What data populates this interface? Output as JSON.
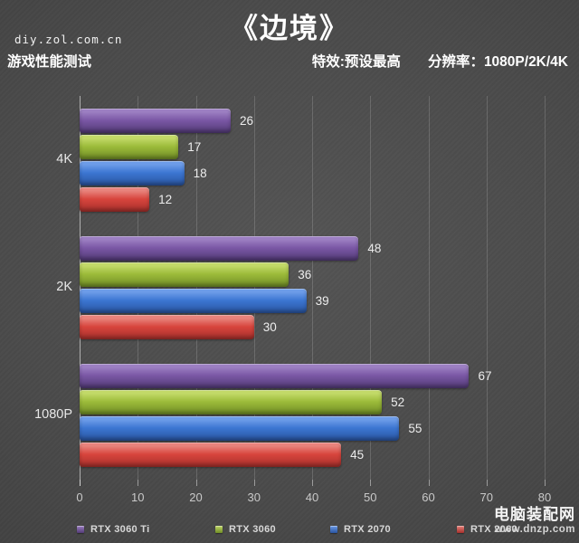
{
  "header": {
    "title": "《边境》",
    "site": "diy.zol.com.cn",
    "subtitle_left": "游戏性能测试",
    "effects": "特效:预设最高",
    "resolution": "分辨率：1080P/2K/4K"
  },
  "watermark": {
    "name": "电脑装配网",
    "url": "www.dnzp.com"
  },
  "chart_data": {
    "type": "bar",
    "orientation": "horizontal",
    "title": "《边境》",
    "xlabel": "",
    "ylabel": "",
    "categories": [
      "4K",
      "2K",
      "1080P"
    ],
    "series": [
      {
        "name": "RTX 3060 Ti",
        "values": [
          26,
          48,
          67
        ],
        "color": "#7a57a5",
        "color_light": "#9c7fc2",
        "color_dark": "#523a76"
      },
      {
        "name": "RTX 3060",
        "values": [
          17,
          36,
          52
        ],
        "color": "#9cbb3a",
        "color_light": "#c2d968",
        "color_dark": "#6f8c25"
      },
      {
        "name": "RTX 2070",
        "values": [
          18,
          39,
          55
        ],
        "color": "#3c76d2",
        "color_light": "#6d9ce8",
        "color_dark": "#29549f"
      },
      {
        "name": "RTX 2060",
        "values": [
          12,
          30,
          45
        ],
        "color": "#d8453d",
        "color_light": "#e8837c",
        "color_dark": "#a52f2b"
      }
    ],
    "xlim": [
      0,
      80
    ],
    "xticks": [
      0,
      10,
      20,
      30,
      40,
      50,
      60,
      70,
      80
    ],
    "grid": true,
    "value_labels": true,
    "legend_position": "bottom"
  }
}
